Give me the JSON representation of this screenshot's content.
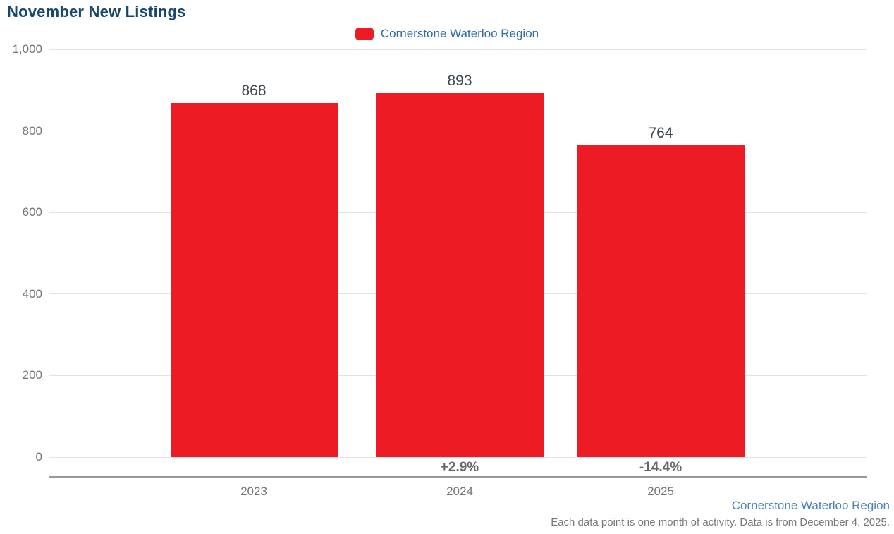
{
  "title": "November New Listings",
  "legend": {
    "label": "Cornerstone Waterloo Region",
    "swatch_icon": "red-rounded-square",
    "swatch_color": "#ed1c24"
  },
  "chart_data": {
    "type": "bar",
    "title": "November New Listings",
    "series_name": "Cornerstone Waterloo Region",
    "categories": [
      "2023",
      "2024",
      "2025"
    ],
    "values": [
      868,
      893,
      764
    ],
    "value_labels": [
      "868",
      "893",
      "764"
    ],
    "pct_change_labels": [
      "",
      "+2.9%",
      "-14.4%"
    ],
    "xlabel": "",
    "ylabel": "",
    "ylim": [
      0,
      1000
    ],
    "yticks": [
      0,
      200,
      400,
      600,
      800,
      1000
    ],
    "ytick_labels": [
      "0",
      "200",
      "400",
      "600",
      "800",
      "1,000"
    ],
    "grid": true,
    "legend_position": "top-center",
    "bar_color": "#ed1c24"
  },
  "footer": {
    "attribution": "Cornerstone Waterloo Region",
    "note": "Each data point is one month of activity. Data is from December 4, 2025."
  },
  "colors": {
    "bar": "#ed1c24",
    "title_text": "#17466e",
    "legend_text": "#2e6da4",
    "tick_text": "#757575",
    "value_text": "#3f4750",
    "pct_text": "#63666a",
    "gridline": "#e3e3e3",
    "axis_line": "#999999",
    "footer_link": "#4d82b8",
    "footer_note": "#76787b"
  }
}
